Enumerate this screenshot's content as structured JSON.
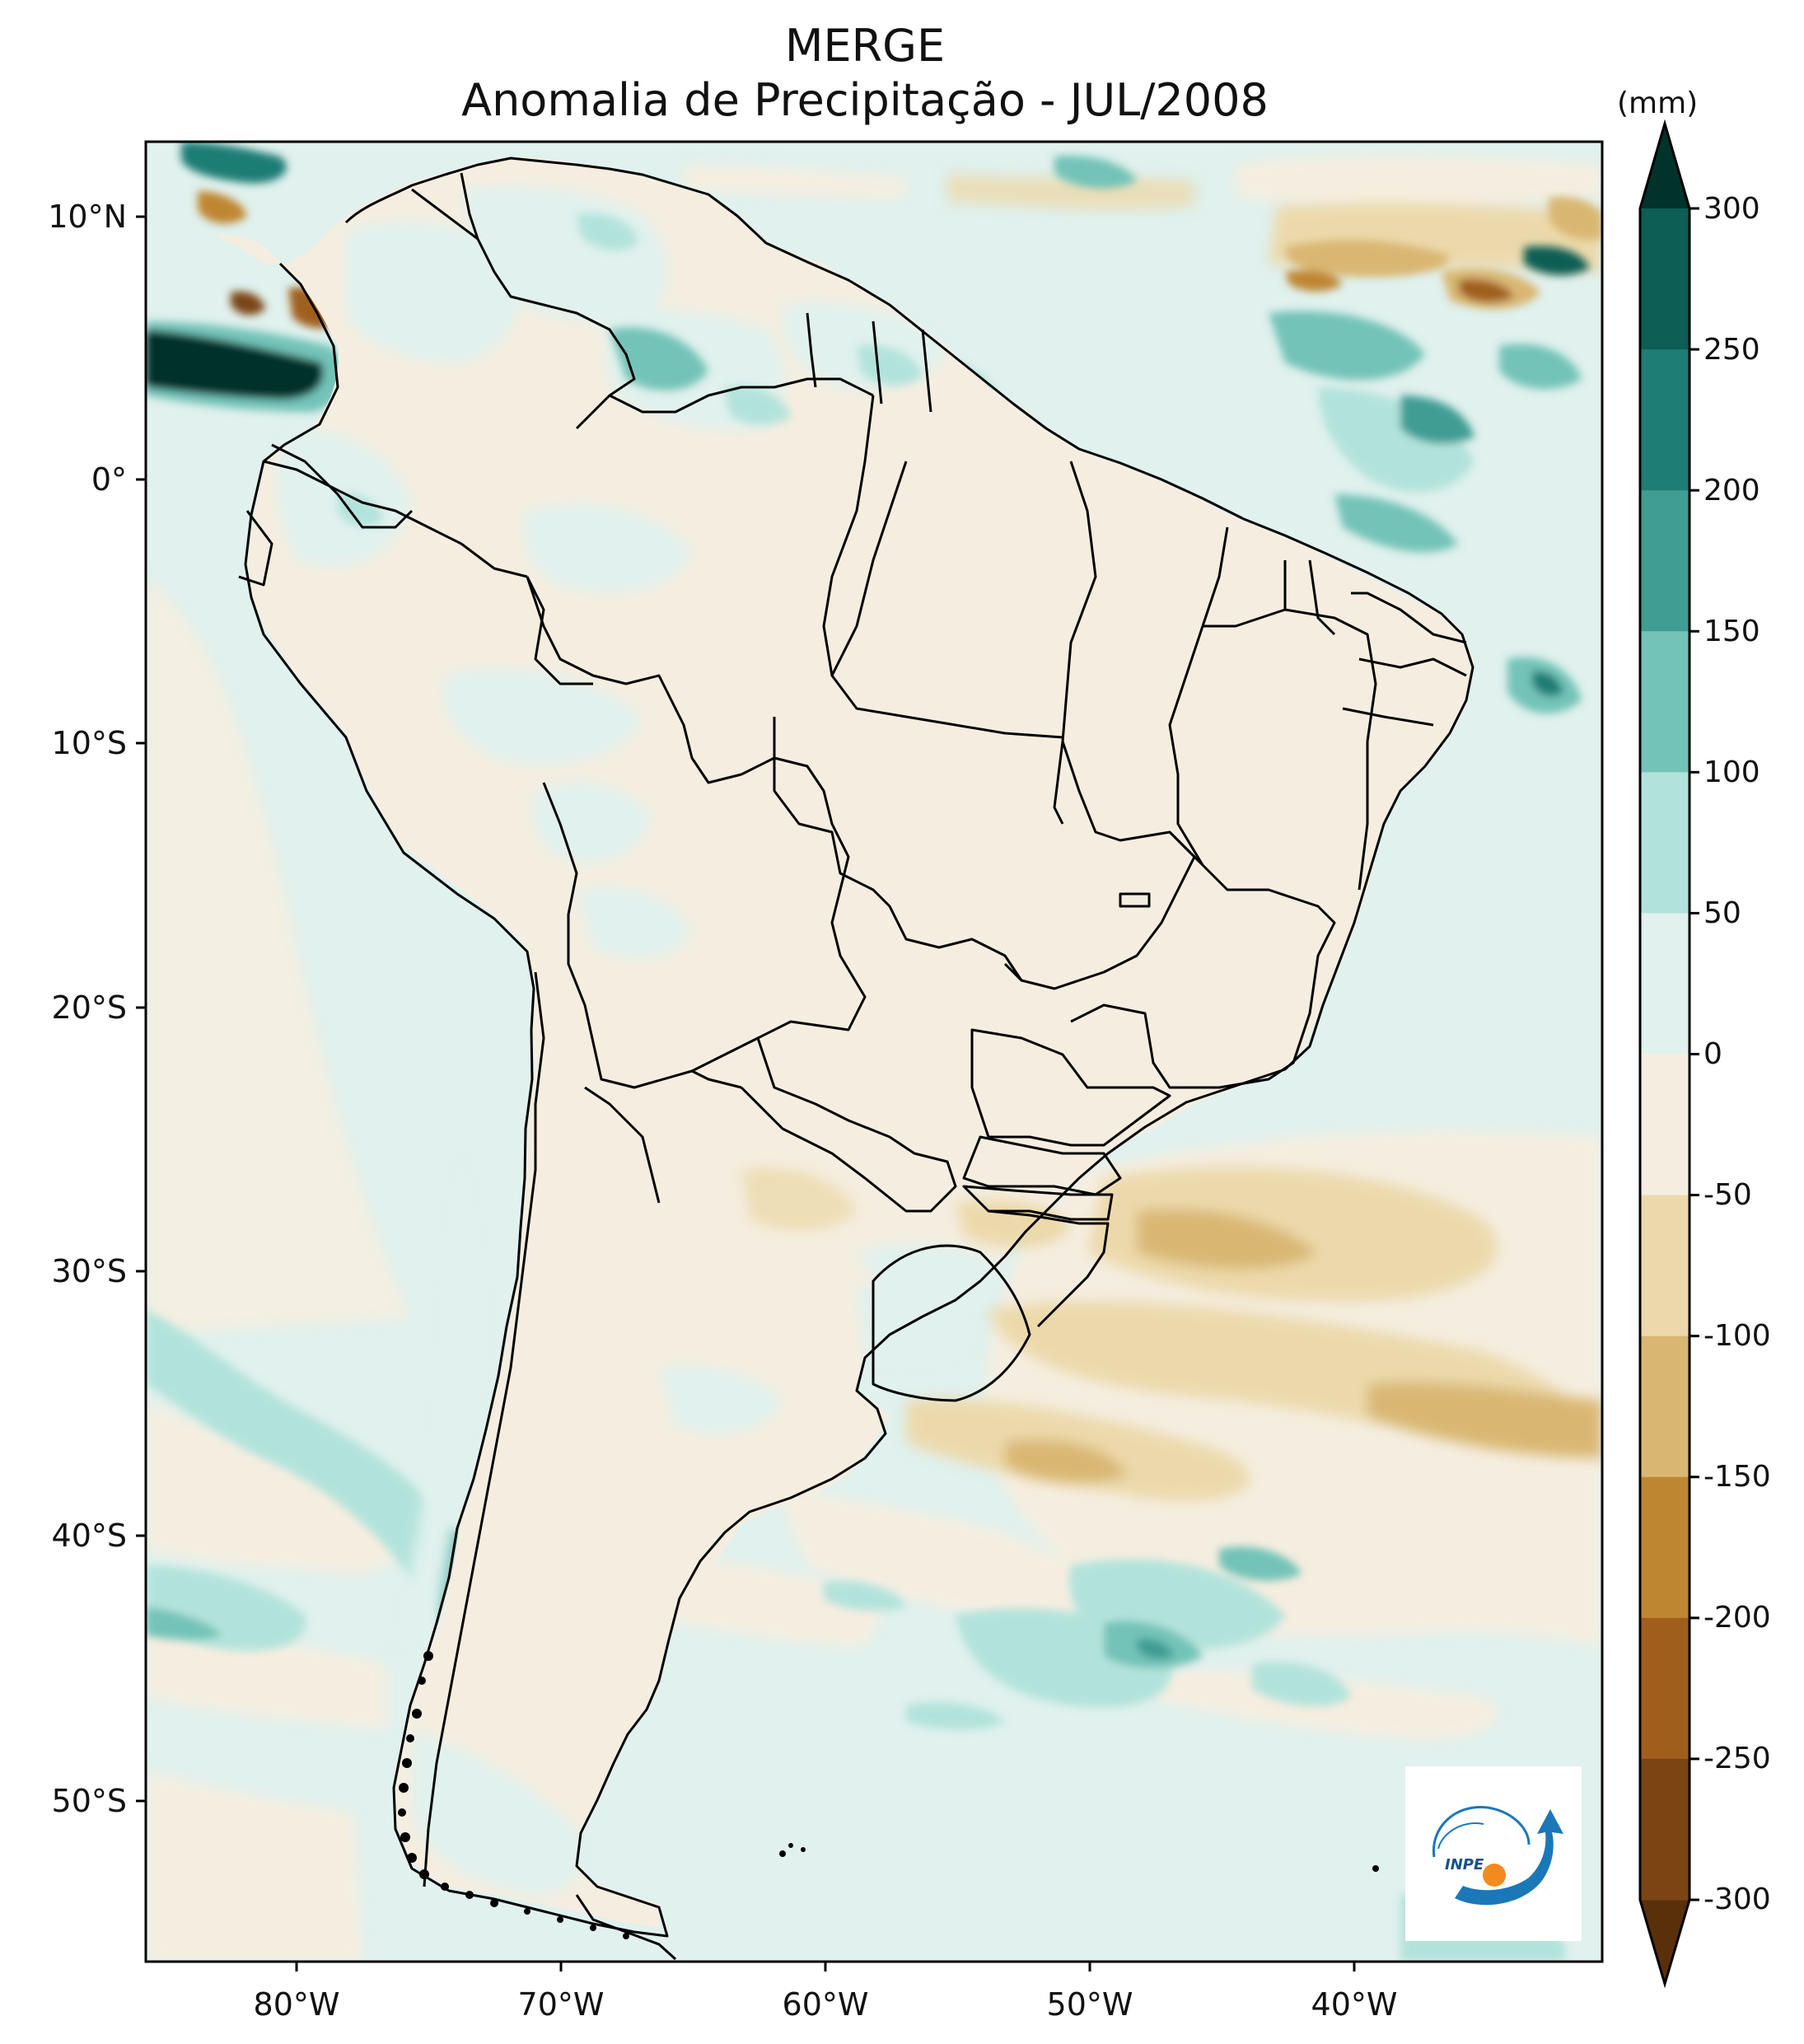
{
  "title": "MERGE",
  "subtitle": "Anomalia de Precipitação - JUL/2008",
  "colorbar": {
    "units": "(mm)",
    "ticks": [
      "300",
      "250",
      "200",
      "150",
      "100",
      "50",
      "0",
      "-50",
      "-100",
      "-150",
      "-200",
      "-250",
      "-300"
    ],
    "colors": [
      "#01332b",
      "#0d5e55",
      "#1e7d74",
      "#3f9d94",
      "#73c3b8",
      "#b2e3db",
      "#e0f1ee",
      "#f5eee0",
      "#ecd9ab",
      "#d9b772",
      "#bf8632",
      "#a05e1d",
      "#7a4413",
      "#5a300a"
    ]
  },
  "axes": {
    "lat_labels": [
      "10°N",
      "0°",
      "10°S",
      "20°S",
      "30°S",
      "40°S",
      "50°S"
    ],
    "lon_labels": [
      "80°W",
      "70°W",
      "60°W",
      "50°W",
      "40°W"
    ]
  },
  "logo": {
    "text": "INPE",
    "name": "inpe-logo"
  },
  "colors": {
    "land": "#f5eee0",
    "ocean_light": "#e0f1ee",
    "frame": "#000000"
  }
}
